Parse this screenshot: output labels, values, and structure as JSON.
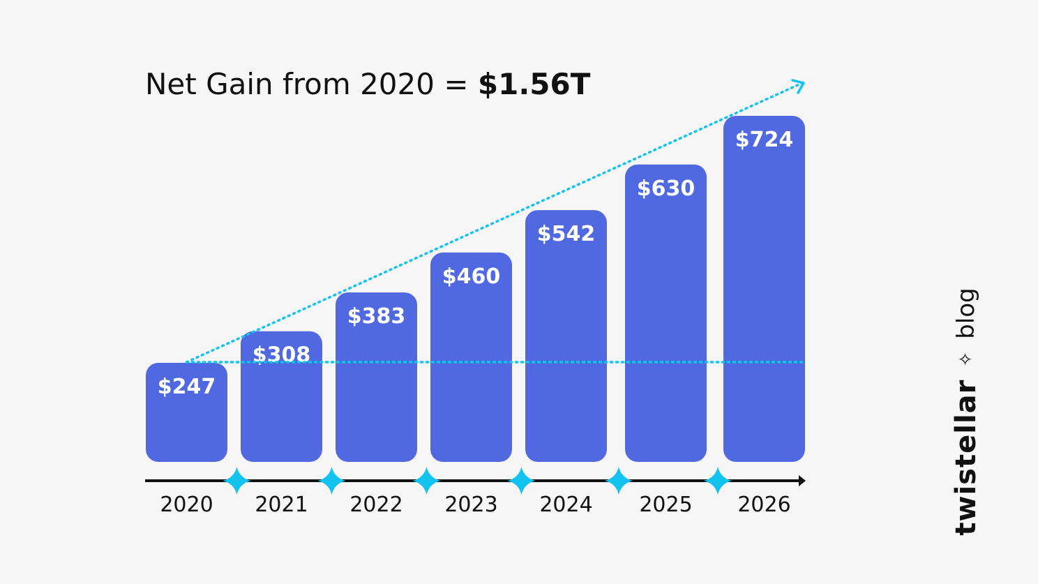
{
  "header": {
    "title_prefix": "Net Gain from 2020 = ",
    "title_value": "$1.56T"
  },
  "brand": {
    "name": "twistellar",
    "separator": "✧",
    "suffix": "blog"
  },
  "colors": {
    "bar": "#5169e0",
    "accent": "#12c3f0",
    "axis": "#111111",
    "background": "#f6f6f6"
  },
  "chart_data": {
    "type": "bar",
    "title": "Net Gain from 2020 = $1.56T",
    "categories": [
      "2020",
      "2021",
      "2022",
      "2023",
      "2024",
      "2025",
      "2026"
    ],
    "values": [
      247,
      308,
      383,
      460,
      542,
      630,
      724
    ],
    "value_labels": [
      "$247",
      "$308",
      "$383",
      "$460",
      "$542",
      "$630",
      "$724"
    ],
    "baseline_value": 247,
    "trend_line": "dotted arrow from 2020 bar top rising past 2026",
    "xlabel": "",
    "ylabel": "",
    "ylim": [
      0,
      724
    ],
    "grid": false
  }
}
